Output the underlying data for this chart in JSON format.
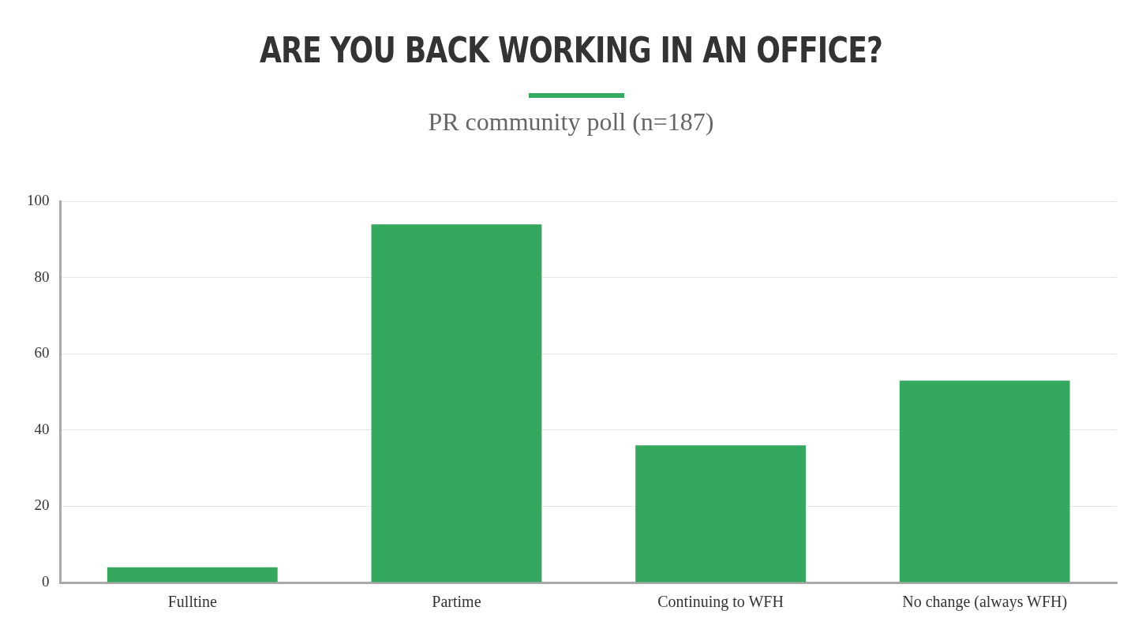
{
  "chart_data": {
    "type": "bar",
    "title": "ARE YOU BACK WORKING IN AN OFFICE?",
    "subtitle": "PR community poll (n=187)",
    "categories": [
      "Fulltine",
      "Partime",
      "Continuing to WFH",
      "No change (always WFH)"
    ],
    "values": [
      4,
      94,
      36,
      53
    ],
    "color": "#34a85f",
    "ylim": [
      0,
      100
    ],
    "yticks": [
      0,
      20,
      40,
      60,
      80,
      100
    ],
    "grid": "y",
    "legend": false
  }
}
